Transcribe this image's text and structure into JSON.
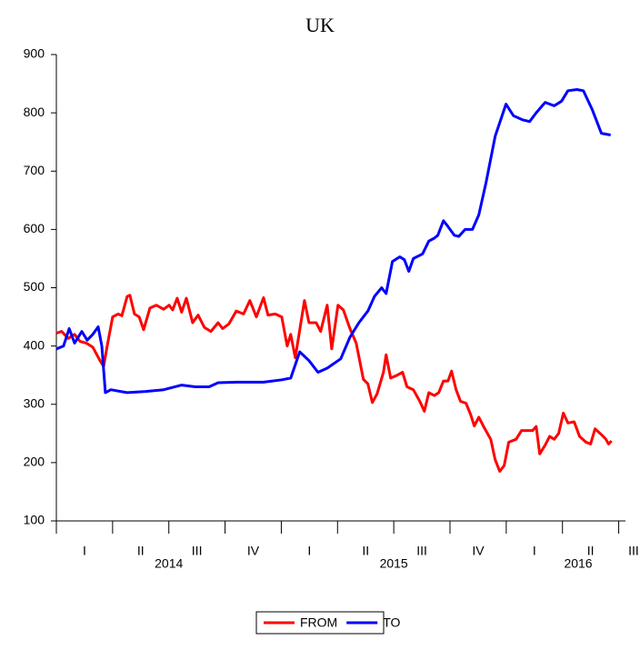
{
  "chart_data": {
    "type": "line",
    "title": "UK",
    "xlim": [
      2014,
      2016.53
    ],
    "ylim": [
      100,
      900
    ],
    "yticks": [
      100,
      200,
      300,
      400,
      500,
      600,
      700,
      800,
      900
    ],
    "xminor_ticks": [
      2014,
      2014.25,
      2014.5,
      2014.75,
      2015,
      2015.25,
      2015.5,
      2015.75,
      2016,
      2016.25,
      2016.5
    ],
    "xticks": [
      {
        "value": 2014.125,
        "label": "I"
      },
      {
        "value": 2014.375,
        "label": "II"
      },
      {
        "value": 2014.625,
        "label": "III"
      },
      {
        "value": 2014.875,
        "label": "IV"
      },
      {
        "value": 2015.125,
        "label": "I"
      },
      {
        "value": 2015.375,
        "label": "II"
      },
      {
        "value": 2015.625,
        "label": "III"
      },
      {
        "value": 2015.875,
        "label": "IV"
      },
      {
        "value": 2016.125,
        "label": "I"
      },
      {
        "value": 2016.375,
        "label": "II"
      },
      {
        "value": 2016.625,
        "label": "III"
      }
    ],
    "year_labels": [
      {
        "value": 2014.5,
        "label": "2014"
      },
      {
        "value": 2015.5,
        "label": "2015"
      },
      {
        "value": 2016.32,
        "label": "2016"
      }
    ],
    "legend": "bottom",
    "series": [
      {
        "name": "FROM",
        "color": "#ff0000",
        "x": [
          2014.0,
          2014.024,
          2014.053,
          2014.081,
          2014.105,
          2014.133,
          2014.162,
          2014.194,
          2014.21,
          2014.226,
          2014.25,
          2014.275,
          2014.291,
          2014.315,
          2014.327,
          2014.347,
          2014.368,
          2014.388,
          2014.416,
          2014.444,
          2014.477,
          2014.501,
          2014.517,
          2014.537,
          2014.557,
          2014.578,
          2014.606,
          2014.63,
          2014.658,
          2014.687,
          2014.719,
          2014.739,
          2014.767,
          2014.8,
          2014.832,
          2014.86,
          2014.889,
          2014.921,
          2014.941,
          2014.973,
          2015.002,
          2015.026,
          2015.042,
          2015.062,
          2015.103,
          2015.123,
          2015.155,
          2015.175,
          2015.204,
          2015.224,
          2015.252,
          2015.276,
          2015.305,
          2015.333,
          2015.365,
          2015.385,
          2015.405,
          2015.426,
          2015.454,
          2015.466,
          2015.486,
          2015.515,
          2015.539,
          2015.559,
          2015.587,
          2015.616,
          2015.636,
          2015.656,
          2015.68,
          2015.7,
          2015.721,
          2015.741,
          2015.757,
          2015.777,
          2015.797,
          2015.821,
          2015.842,
          2015.858,
          2015.878,
          2015.902,
          2015.931,
          2015.951,
          2015.971,
          2015.991,
          2016.011,
          2016.044,
          2016.068,
          2016.117,
          2016.133,
          2016.149,
          2016.173,
          2016.193,
          2016.213,
          2016.233,
          2016.254,
          2016.274,
          2016.302,
          2016.326,
          2016.354,
          2016.375,
          2016.395,
          2016.423,
          2016.443,
          2016.455,
          2016.468
        ],
        "values": [
          422,
          425,
          413,
          420,
          408,
          405,
          398,
          375,
          365,
          400,
          450,
          455,
          452,
          485,
          487,
          455,
          450,
          428,
          465,
          470,
          463,
          470,
          462,
          482,
          458,
          482,
          440,
          453,
          432,
          425,
          440,
          430,
          438,
          460,
          455,
          478,
          450,
          483,
          453,
          455,
          450,
          400,
          420,
          380,
          478,
          440,
          440,
          425,
          470,
          395,
          470,
          462,
          430,
          405,
          343,
          335,
          303,
          318,
          355,
          385,
          345,
          350,
          355,
          330,
          325,
          305,
          288,
          320,
          315,
          320,
          340,
          340,
          357,
          325,
          305,
          302,
          282,
          263,
          278,
          260,
          240,
          205,
          185,
          195,
          235,
          240,
          255,
          255,
          262,
          215,
          230,
          245,
          240,
          250,
          285,
          268,
          270,
          245,
          235,
          232,
          258,
          248,
          240,
          232,
          237
        ]
      },
      {
        "name": "TO",
        "color": "#0000ff",
        "x": [
          2014.0,
          2014.032,
          2014.057,
          2014.081,
          2014.113,
          2014.137,
          2014.162,
          2014.186,
          2014.202,
          2014.218,
          2014.242,
          2014.315,
          2014.396,
          2014.477,
          2014.557,
          2014.618,
          2014.679,
          2014.719,
          2014.8,
          2014.921,
          2015.002,
          2015.042,
          2015.082,
          2015.123,
          2015.163,
          2015.204,
          2015.264,
          2015.305,
          2015.345,
          2015.385,
          2015.414,
          2015.446,
          2015.466,
          2015.494,
          2015.527,
          2015.547,
          2015.567,
          2015.587,
          2015.628,
          2015.656,
          2015.68,
          2015.696,
          2015.721,
          2015.741,
          2015.769,
          2015.789,
          2015.817,
          2015.85,
          2015.878,
          2015.91,
          2015.951,
          2015.999,
          2016.032,
          2016.072,
          2016.104,
          2016.133,
          2016.173,
          2016.213,
          2016.246,
          2016.274,
          2016.314,
          2016.343,
          2016.383,
          2016.423,
          2016.464
        ],
        "values": [
          395,
          400,
          430,
          405,
          425,
          410,
          420,
          433,
          400,
          320,
          325,
          320,
          322,
          325,
          333,
          330,
          330,
          337,
          338,
          338,
          342,
          345,
          390,
          375,
          355,
          362,
          378,
          415,
          440,
          460,
          485,
          500,
          490,
          545,
          553,
          548,
          528,
          550,
          558,
          580,
          585,
          590,
          615,
          605,
          590,
          588,
          600,
          600,
          625,
          680,
          760,
          815,
          795,
          788,
          785,
          800,
          818,
          812,
          820,
          838,
          840,
          838,
          805,
          765,
          762
        ]
      }
    ]
  }
}
